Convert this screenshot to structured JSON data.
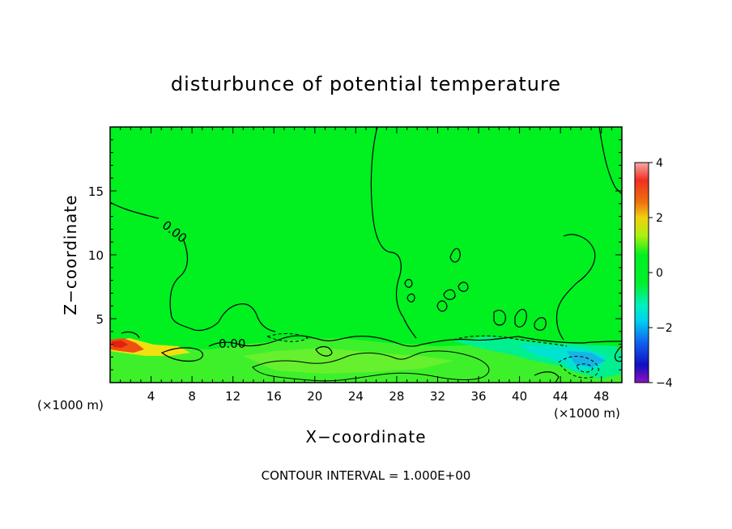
{
  "chart_data": {
    "type": "heatmap",
    "title": "disturbunce of potential temperature",
    "xlabel": "X−coordinate",
    "ylabel": "Z−coordinate",
    "x_unit_label": "(×1000 m)",
    "y_unit_label": "(×1000 m)",
    "xlim": [
      0,
      50
    ],
    "ylim": [
      0,
      20
    ],
    "x_ticks": [
      4,
      8,
      12,
      16,
      20,
      24,
      28,
      32,
      36,
      40,
      44,
      48
    ],
    "y_ticks": [
      5,
      10,
      15
    ],
    "colorbar": {
      "range": [
        -4,
        4
      ],
      "ticks": [
        4,
        2,
        0,
        -2,
        -4
      ]
    },
    "contour_labels": [
      "0.00",
      "0.00"
    ],
    "footer": "CONTOUR INTERVAL = 1.000E+00"
  }
}
